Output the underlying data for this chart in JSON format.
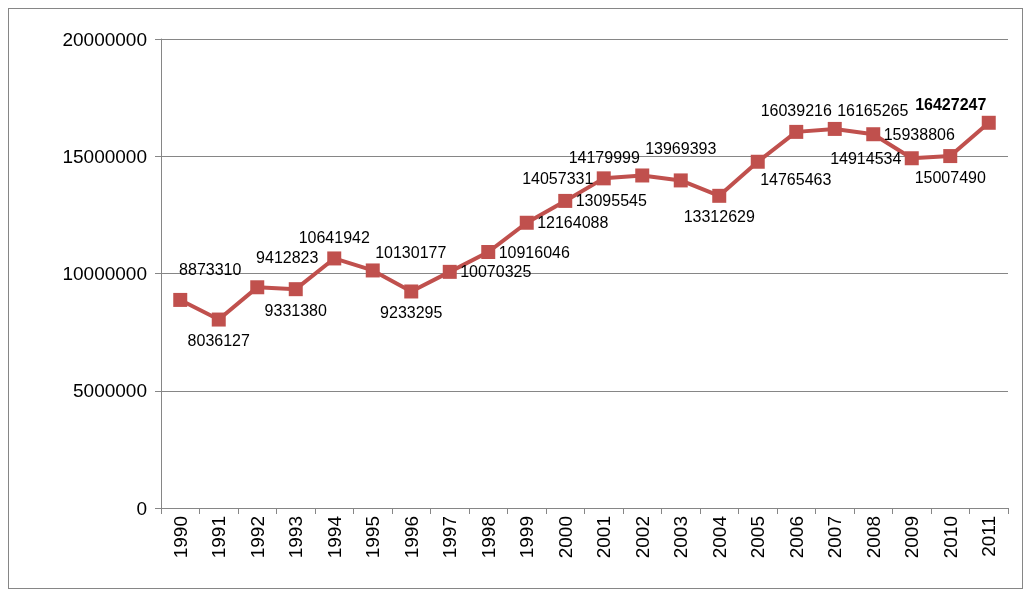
{
  "chart_data": {
    "type": "line",
    "categories": [
      "1990",
      "1991",
      "1992",
      "1993",
      "1994",
      "1995",
      "1996",
      "1997",
      "1998",
      "1999",
      "2000",
      "2001",
      "2002",
      "2003",
      "2004",
      "2005",
      "2006",
      "2007",
      "2008",
      "2009",
      "2010",
      "2011"
    ],
    "series": [
      {
        "color": "#c0504d",
        "values": [
          8873310,
          8036127,
          9412823,
          9331380,
          10641942,
          10130177,
          9233295,
          10070325,
          10916046,
          12164088,
          13095545,
          14057331,
          14179999,
          13969393,
          13312629,
          14765463,
          16039216,
          16165265,
          15938806,
          14914534,
          15007490,
          16427247
        ]
      }
    ],
    "ylim": [
      0,
      20000000
    ],
    "yticks": [
      0,
      5000000,
      10000000,
      15000000,
      20000000
    ],
    "grid": "y",
    "marker": "square",
    "line_style": "solid",
    "data_labels": true
  }
}
